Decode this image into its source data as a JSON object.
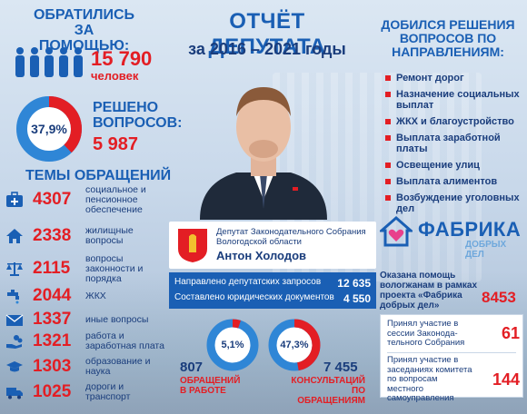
{
  "header": {
    "title": "ОТЧЁТ ДЕПУТАТА",
    "subtitle": "за 2016 – 2021 годы"
  },
  "asked": {
    "title": "ОБРАТИЛИСЬ ЗА ПОМОЩЬЮ:",
    "value": "15 790",
    "unit": "человек",
    "icon": "people-group-icon"
  },
  "solved": {
    "percent_label": "37,9%",
    "percent": 37.9,
    "title": "РЕШЕНО ВОПРОСОВ:",
    "value": "5 987"
  },
  "topics": {
    "title": "ТЕМЫ ОБРАЩЕНИЙ",
    "items": [
      {
        "icon": "medkit-icon",
        "value": "4307",
        "label": "социальное и пенсионное обеспечение"
      },
      {
        "icon": "house-icon",
        "value": "2338",
        "label": "жилищные вопросы"
      },
      {
        "icon": "scales-icon",
        "value": "2115",
        "label": "вопросы законности и порядка"
      },
      {
        "icon": "faucet-icon",
        "value": "2044",
        "label": "ЖКХ"
      },
      {
        "icon": "envelope-icon",
        "value": "1337",
        "label": "иные вопросы"
      },
      {
        "icon": "coins-hand-icon",
        "value": "1321",
        "label": "работа и заработная плата"
      },
      {
        "icon": "graduation-cap-icon",
        "value": "1303",
        "label": "образование и наука"
      },
      {
        "icon": "truck-icon",
        "value": "1025",
        "label": "дороги и транспорт"
      }
    ]
  },
  "deputy": {
    "description": "Депутат Законодательного Собрания Вологодской области",
    "name": "Антон Холодов"
  },
  "stats": [
    {
      "label": "Направлено депутатских запросов",
      "value": "12 635"
    },
    {
      "label": "Составлено юридических документов",
      "value": "4 550"
    }
  ],
  "in_work": {
    "percent_label": "5,1%",
    "percent": 5.1,
    "value": "807",
    "label": "ОБРАЩЕНИЙ В РАБОТЕ"
  },
  "consultations": {
    "percent_label": "47,3%",
    "percent": 47.3,
    "value": "7 455",
    "label": "КОНСУЛЬТАЦИЙ ПО ОБРАЩЕНИЯМ"
  },
  "achieved": {
    "title": "ДОБИЛСЯ РЕШЕНИЯ ВОПРОСОВ ПО НАПРАВЛЕНИЯМ:",
    "items": [
      "Ремонт дорог",
      "Назначение социальных выплат",
      "ЖКХ и благоустройство",
      "Выплата заработной платы",
      "Освещение улиц",
      "Выплата алиментов",
      "Возбуждение уголовных дел"
    ]
  },
  "fabrika": {
    "title": "ФАБРИКА",
    "subtitle": "ДОБРЫХ ДЕЛ",
    "help_text": "Оказана помощь вологжанам в рамках проекта «Фабрика добрых дел»",
    "help_value": "8453"
  },
  "participation": [
    {
      "text": "Принял участие в сессии Законода-тельного Собрания",
      "value": "61"
    },
    {
      "text": "Принял участие в заседаниях комитета по вопросам местного самоуправления",
      "value": "144"
    }
  ],
  "colors": {
    "accent_blue": "#1a5fb4",
    "dark_blue": "#1a3d7c",
    "accent_red": "#e31e24"
  }
}
